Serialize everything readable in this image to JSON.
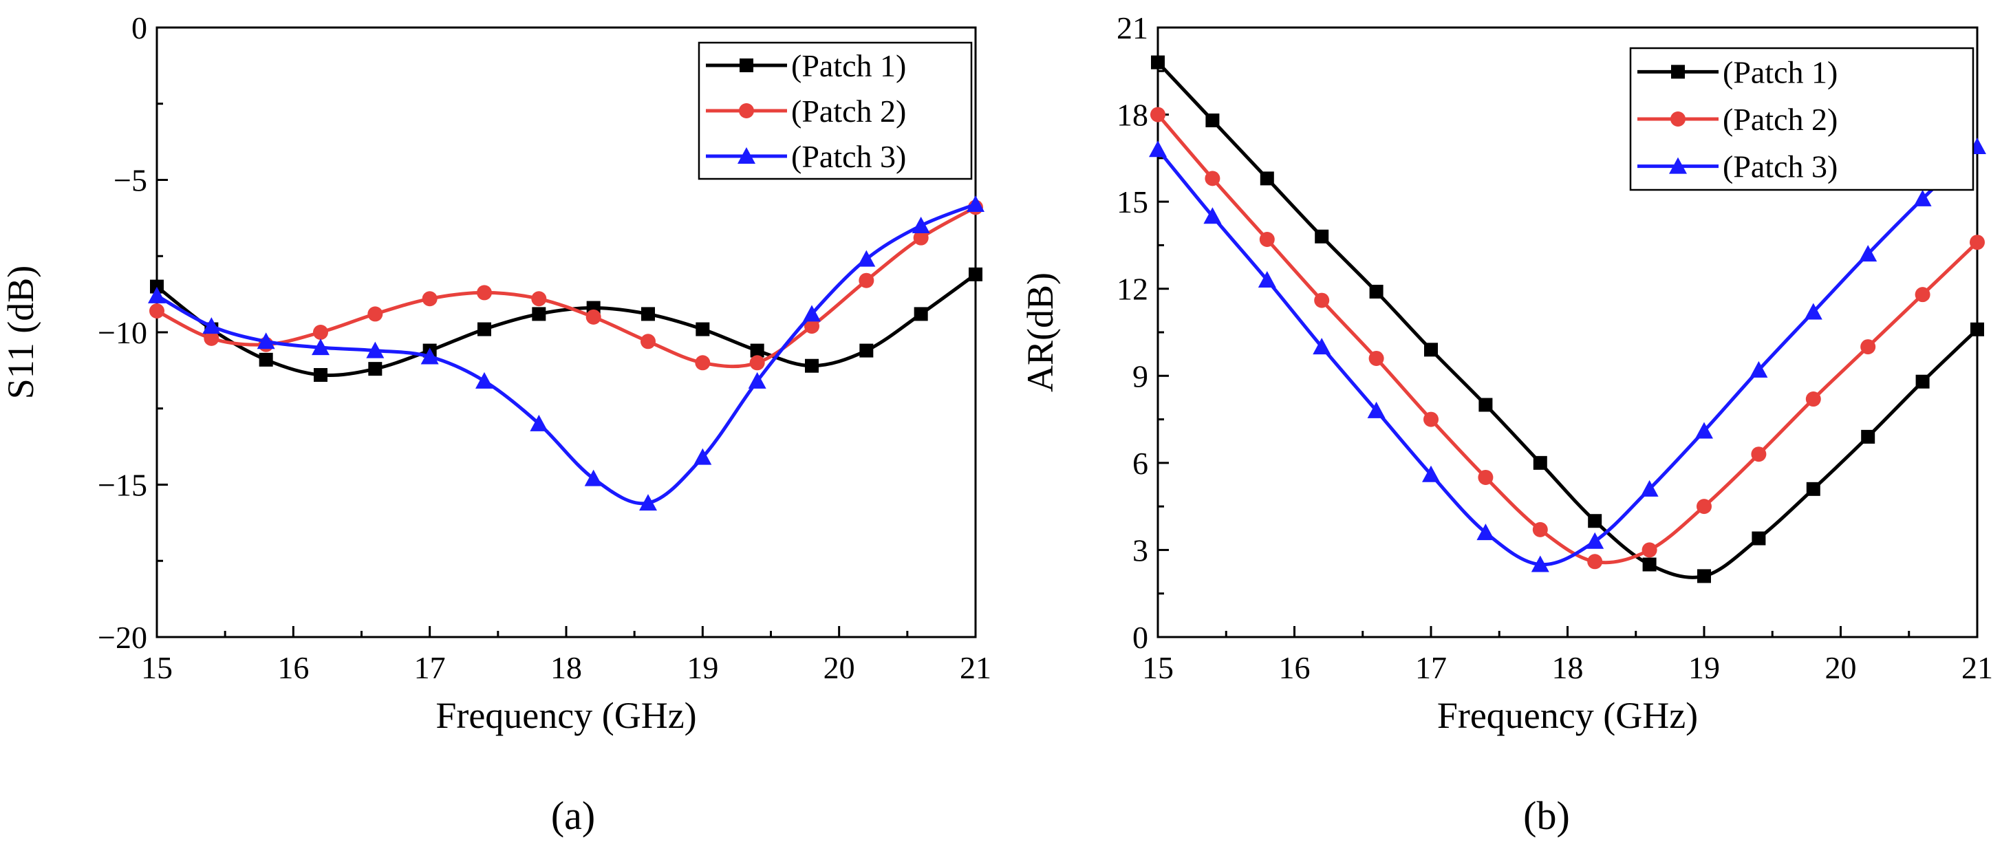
{
  "figure": {
    "panels": [
      "(a)",
      "(b)"
    ]
  },
  "chart_data": [
    {
      "type": "line",
      "caption": "(a)",
      "xlabel": "Frequency (GHz)",
      "ylabel": "S11 (dB)",
      "xlim": [
        15,
        21
      ],
      "ylim": [
        -20,
        0
      ],
      "xticks": [
        15,
        16,
        17,
        18,
        19,
        20,
        21
      ],
      "xtick_labels": [
        "15",
        "16",
        "17",
        "18",
        "19",
        "20",
        "21"
      ],
      "yticks": [
        -20,
        -15,
        -10,
        -5,
        0
      ],
      "ytick_labels": [
        "−20",
        "−15",
        "−10",
        "−5",
        "0"
      ],
      "legend_position": "top-right",
      "grid": false,
      "series": [
        {
          "name": "(Patch 1)",
          "color": "#000000",
          "marker": "square",
          "x": [
            15.0,
            15.4,
            15.8,
            16.2,
            16.6,
            17.0,
            17.4,
            17.8,
            18.2,
            18.6,
            19.0,
            19.4,
            19.8,
            20.2,
            20.6,
            21.0
          ],
          "y": [
            -8.5,
            -9.9,
            -10.9,
            -11.4,
            -11.2,
            -10.6,
            -9.9,
            -9.4,
            -9.2,
            -9.4,
            -9.9,
            -10.6,
            -11.1,
            -10.6,
            -9.4,
            -8.1
          ]
        },
        {
          "name": "(Patch 2)",
          "color": "#e8413c",
          "marker": "circle",
          "x": [
            15.0,
            15.4,
            15.8,
            16.2,
            16.6,
            17.0,
            17.4,
            17.8,
            18.2,
            18.6,
            19.0,
            19.4,
            19.8,
            20.2,
            20.6,
            21.0
          ],
          "y": [
            -9.3,
            -10.2,
            -10.4,
            -10.0,
            -9.4,
            -8.9,
            -8.7,
            -8.9,
            -9.5,
            -10.3,
            -11.0,
            -11.0,
            -9.8,
            -8.3,
            -6.9,
            -5.9
          ]
        },
        {
          "name": "(Patch 3)",
          "color": "#1a1aff",
          "marker": "triangle",
          "x": [
            15.0,
            15.4,
            15.8,
            16.2,
            16.6,
            17.0,
            17.4,
            17.8,
            18.2,
            18.6,
            19.0,
            19.4,
            19.8,
            20.2,
            20.6,
            21.0
          ],
          "y": [
            -8.8,
            -9.8,
            -10.3,
            -10.5,
            -10.6,
            -10.8,
            -11.6,
            -13.0,
            -14.8,
            -15.6,
            -14.1,
            -11.6,
            -9.4,
            -7.6,
            -6.5,
            -5.8
          ]
        }
      ]
    },
    {
      "type": "line",
      "caption": "(b)",
      "xlabel": "Frequency (GHz)",
      "ylabel": "AR(dB)",
      "xlim": [
        15,
        21
      ],
      "ylim": [
        0,
        21
      ],
      "xticks": [
        15,
        16,
        17,
        18,
        19,
        20,
        21
      ],
      "xtick_labels": [
        "15",
        "16",
        "17",
        "18",
        "19",
        "20",
        "21"
      ],
      "yticks": [
        0,
        3,
        6,
        9,
        12,
        15,
        18,
        21
      ],
      "ytick_labels": [
        "0",
        "3",
        "6",
        "9",
        "12",
        "15",
        "18",
        "21"
      ],
      "legend_position": "top-right",
      "grid": false,
      "series": [
        {
          "name": "(Patch 1)",
          "color": "#000000",
          "marker": "square",
          "x": [
            15.0,
            15.4,
            15.8,
            16.2,
            16.6,
            17.0,
            17.4,
            17.8,
            18.2,
            18.6,
            19.0,
            19.4,
            19.8,
            20.2,
            20.6,
            21.0
          ],
          "y": [
            19.8,
            17.8,
            15.8,
            13.8,
            11.9,
            9.9,
            8.0,
            6.0,
            4.0,
            2.5,
            2.1,
            3.4,
            5.1,
            6.9,
            8.8,
            10.6
          ]
        },
        {
          "name": "(Patch 2)",
          "color": "#e8413c",
          "marker": "circle",
          "x": [
            15.0,
            15.4,
            15.8,
            16.2,
            16.6,
            17.0,
            17.4,
            17.8,
            18.2,
            18.6,
            19.0,
            19.4,
            19.8,
            20.2,
            20.6,
            21.0
          ],
          "y": [
            18.0,
            15.8,
            13.7,
            11.6,
            9.6,
            7.5,
            5.5,
            3.7,
            2.6,
            3.0,
            4.5,
            6.3,
            8.2,
            10.0,
            11.8,
            13.6
          ]
        },
        {
          "name": "(Patch 3)",
          "color": "#1a1aff",
          "marker": "triangle",
          "x": [
            15.0,
            15.4,
            15.8,
            16.2,
            16.6,
            17.0,
            17.4,
            17.8,
            18.2,
            18.6,
            19.0,
            19.4,
            19.8,
            20.2,
            20.6,
            21.0
          ],
          "y": [
            16.8,
            14.5,
            12.3,
            10.0,
            7.8,
            5.6,
            3.6,
            2.5,
            3.3,
            5.1,
            7.1,
            9.2,
            11.2,
            13.2,
            15.1,
            16.9
          ]
        }
      ]
    }
  ]
}
